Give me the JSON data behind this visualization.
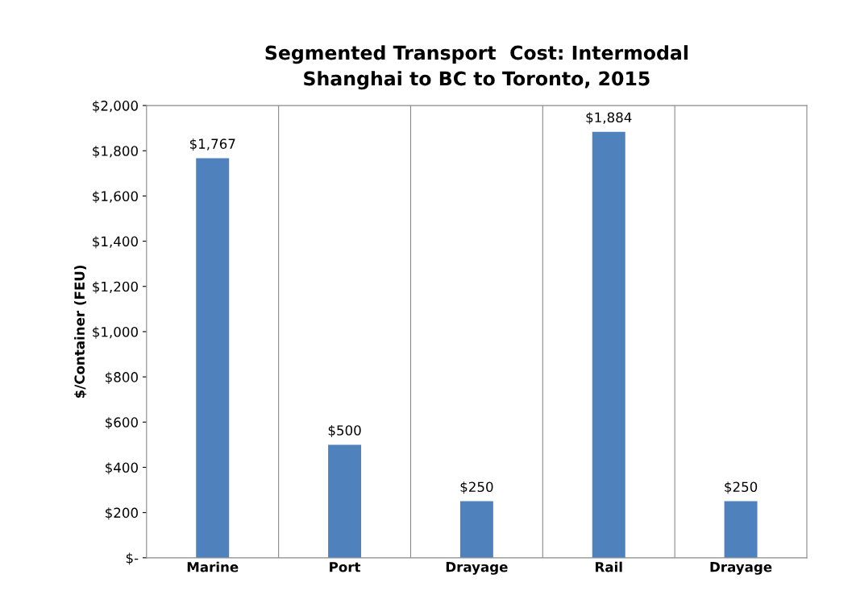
{
  "chart_data": {
    "type": "bar",
    "title": "Segmented Transport  Cost: Intermodal\nShanghai to BC to Toronto, 2015",
    "ylabel": "$/Container (FEU)",
    "categories": [
      "Marine",
      "Port",
      "Drayage",
      "Rail",
      "Drayage"
    ],
    "values": [
      1767,
      500,
      250,
      1884,
      250
    ],
    "value_labels": [
      "$1,767",
      "$500",
      "$250",
      "$1,884",
      "$250"
    ],
    "color": "#4f81bd",
    "ylim": [
      0,
      2000
    ],
    "yticks": [
      {
        "value": 0,
        "label": "$-"
      },
      {
        "value": 200,
        "label": "$200"
      },
      {
        "value": 400,
        "label": "$400"
      },
      {
        "value": 600,
        "label": "$600"
      },
      {
        "value": 800,
        "label": "$800"
      },
      {
        "value": 1000,
        "label": "$1,000"
      },
      {
        "value": 1200,
        "label": "$1,200"
      },
      {
        "value": 1400,
        "label": "$1,400"
      },
      {
        "value": 1600,
        "label": "$1,600"
      },
      {
        "value": 1800,
        "label": "$1,800"
      },
      {
        "value": 2000,
        "label": "$2,000"
      }
    ],
    "grid": "x"
  }
}
